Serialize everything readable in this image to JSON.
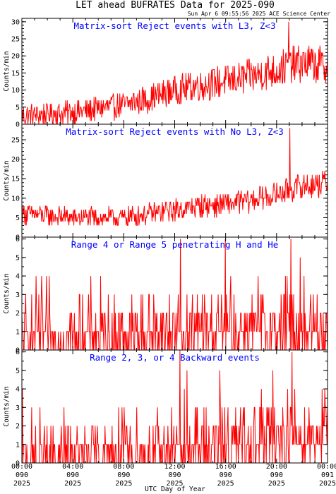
{
  "figure": {
    "title": "LET ahead BUFRATES Data for 2025-090",
    "timestamp": "Sun Apr  6 09:55:56 2025 ACE Science Center",
    "xlabel": "UTC Day of Year",
    "ylabel": "Counts/min",
    "x_ticks": [
      {
        "line1": "00:00",
        "line2": "090",
        "line3": "2025"
      },
      {
        "line1": "04:00",
        "line2": "090",
        "line3": "2025"
      },
      {
        "line1": "08:00",
        "line2": "090",
        "line3": "2025"
      },
      {
        "line1": "12:00",
        "line2": "090",
        "line3": "2025"
      },
      {
        "line1": "16:00",
        "line2": "090",
        "line3": "2025"
      },
      {
        "line1": "20:00",
        "line2": "090",
        "line3": "2025"
      },
      {
        "line1": "00:00",
        "line2": "091",
        "line3": "2025"
      }
    ]
  },
  "chart_data": [
    {
      "type": "line",
      "title": "Matrix-sort Reject events with L3, Z<3",
      "ylabel": "Counts/min",
      "xlim": [
        0,
        24
      ],
      "ylim": [
        0,
        31
      ],
      "yticks": [
        0,
        5,
        10,
        15,
        20,
        25,
        30
      ],
      "color": "#ff0000",
      "x": [
        0,
        2,
        4,
        6,
        8,
        10,
        12,
        14,
        16,
        18,
        20,
        22,
        24
      ],
      "values": [
        2.5,
        3,
        3.5,
        4.5,
        5.5,
        7.5,
        10,
        11.5,
        12.5,
        14,
        16,
        18,
        17
      ],
      "noise": 5,
      "peak": 30
    },
    {
      "type": "line",
      "title": "Matrix-sort Reject events with No L3, Z<3",
      "ylabel": "Counts/min",
      "xlim": [
        0,
        24
      ],
      "ylim": [
        0,
        29
      ],
      "yticks": [
        0,
        5,
        10,
        15,
        20,
        25
      ],
      "color": "#ff0000",
      "x": [
        0,
        2,
        4,
        6,
        8,
        10,
        12,
        14,
        16,
        18,
        20,
        22,
        24
      ],
      "values": [
        6,
        5.5,
        5,
        5,
        5,
        6,
        7,
        8,
        8.5,
        9.5,
        11,
        13,
        14
      ],
      "noise": 3.5,
      "peak": 28
    },
    {
      "type": "line",
      "title": "Range 4 or Range 5 penetrating H and He",
      "ylabel": "Counts/min",
      "xlim": [
        0,
        24
      ],
      "ylim": [
        0,
        6.1
      ],
      "yticks": [
        0,
        1,
        2,
        3,
        4,
        5,
        6
      ],
      "color": "#ff0000",
      "x": [
        0,
        4,
        8,
        12,
        16,
        20,
        24
      ],
      "values": [
        0.9,
        0.9,
        1,
        1.1,
        1.2,
        1.3,
        1.4
      ],
      "discrete": true,
      "peak": 6
    },
    {
      "type": "line",
      "title": "Range 2, 3, or 4 Backward events",
      "ylabel": "Counts/min",
      "xlim": [
        0,
        24
      ],
      "ylim": [
        0,
        6.1
      ],
      "yticks": [
        0,
        1,
        2,
        3,
        4,
        5,
        6
      ],
      "color": "#ff0000",
      "x": [
        0,
        4,
        8,
        12,
        16,
        20,
        24
      ],
      "values": [
        0.5,
        0.6,
        0.7,
        0.9,
        1.1,
        1.5,
        1.8
      ],
      "discrete": true,
      "peak": 6
    }
  ]
}
